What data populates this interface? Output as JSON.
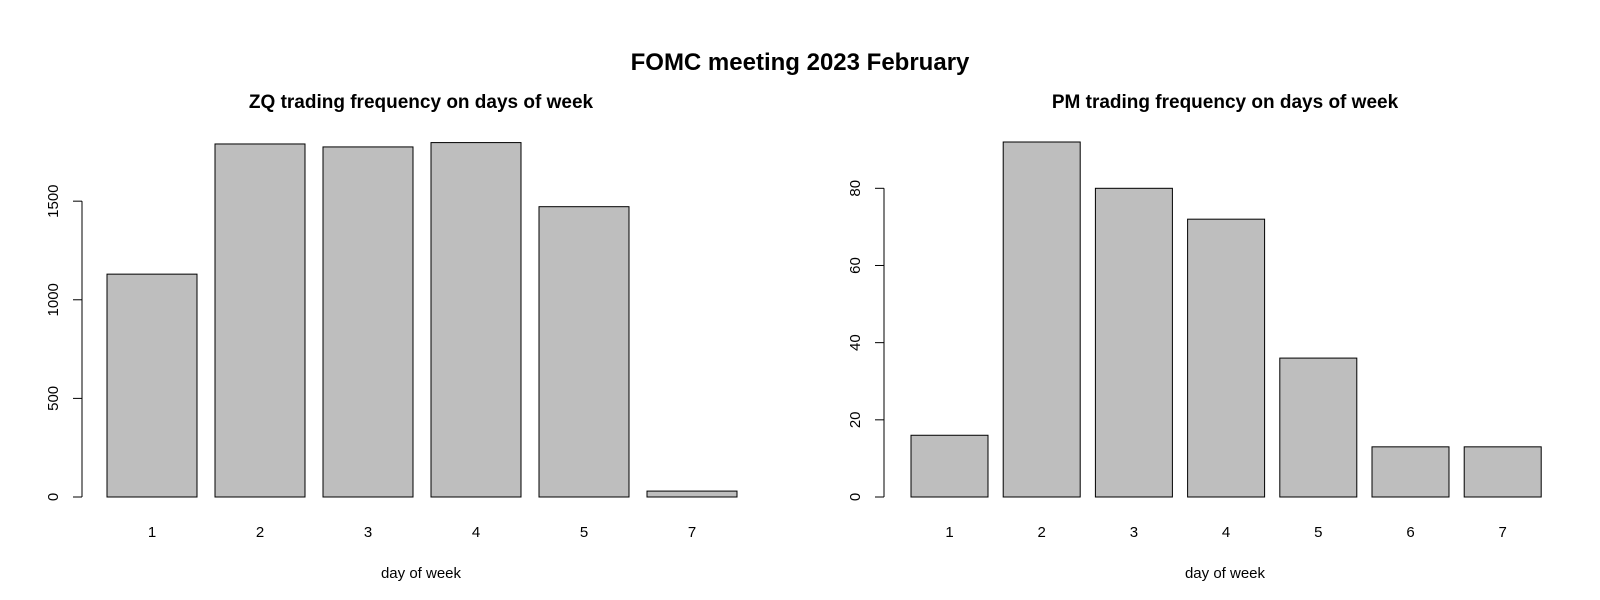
{
  "figure": {
    "title": "FOMC meeting 2023 February"
  },
  "chart_data": [
    {
      "type": "bar",
      "title": "ZQ trading frequency on days of week",
      "xlabel": "day of week",
      "ylabel": "",
      "categories": [
        "1",
        "2",
        "3",
        "4",
        "5",
        "7"
      ],
      "values": [
        1130,
        1790,
        1775,
        1797,
        1472,
        30
      ],
      "ylim": [
        0,
        1800
      ],
      "yticks": [
        0,
        500,
        1000,
        1500
      ],
      "bar_color": "#bebebe",
      "grid": false
    },
    {
      "type": "bar",
      "title": "PM trading frequency on days of week",
      "xlabel": "day of week",
      "ylabel": "",
      "categories": [
        "1",
        "2",
        "3",
        "4",
        "5",
        "6",
        "7"
      ],
      "values": [
        16,
        92,
        80,
        72,
        36,
        13,
        13
      ],
      "ylim": [
        0,
        92
      ],
      "yticks": [
        0,
        20,
        40,
        60,
        80
      ],
      "bar_color": "#bebebe",
      "grid": false
    }
  ]
}
